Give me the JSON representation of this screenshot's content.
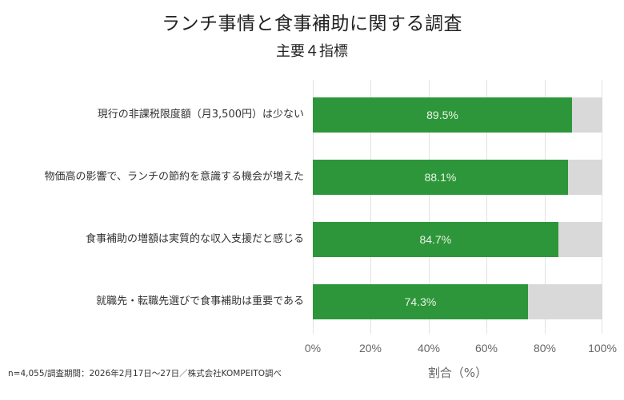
{
  "header": {
    "title": "ランチ事情と食事補助に関する調査",
    "subtitle": "主要４指標"
  },
  "footnote": "n=4,055/調査期間：2026年2月17日〜27日／株式会社KOMPEITO調べ",
  "colors": {
    "bar": "#2e963a",
    "remainder": "#d9d9d9",
    "grid": "#e2e2e2",
    "value_text": "#e8f5e6"
  },
  "chart_data": {
    "type": "bar",
    "orientation": "horizontal",
    "stacked_to_100": true,
    "title": "ランチ事情と食事補助に関する調査",
    "subtitle": "主要４指標",
    "categories": [
      "現行の非課税限度額（月3,500円）は少ない",
      "物価高の影響で、ランチの節約を意識する機会が増えた",
      "食事補助の増額は実質的な収入支援だと感じる",
      "就職先・転職先選びで食事補助は重要である"
    ],
    "values": [
      89.5,
      88.1,
      84.7,
      74.3
    ],
    "value_labels": [
      "89.5%",
      "88.1%",
      "84.7%",
      "74.3%"
    ],
    "xlabel": "割合（%）",
    "ylabel": "",
    "xlim": [
      0,
      100
    ],
    "xticks": [
      "0%",
      "20%",
      "40%",
      "60%",
      "80%",
      "100%"
    ],
    "grid": true,
    "legend": null
  }
}
